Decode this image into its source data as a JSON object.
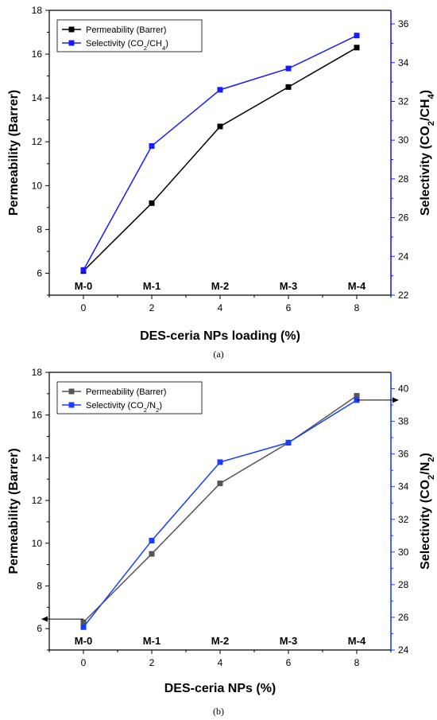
{
  "chart_data": [
    {
      "type": "line",
      "caption": "(a)",
      "x": [
        0,
        2,
        4,
        6,
        8
      ],
      "category_labels": [
        "M-0",
        "M-1",
        "M-2",
        "M-3",
        "M-4"
      ],
      "xlabel": "DES-ceria NPs loading (%)",
      "xlim": [
        -1,
        9
      ],
      "xticks": [
        0,
        2,
        4,
        6,
        8
      ],
      "ylabel": "Permeability (Barrer)",
      "ylim": [
        5,
        18
      ],
      "yticks": [
        6,
        8,
        10,
        12,
        14,
        16,
        18
      ],
      "y2label_parts": [
        "Selectivity (CO",
        "2",
        "/CH",
        "4",
        ")"
      ],
      "y2lim": [
        22,
        36.7
      ],
      "y2ticks": [
        22,
        24,
        26,
        28,
        30,
        32,
        34,
        36
      ],
      "legend_position": "top-left",
      "series": [
        {
          "name": "Permeability (Barrer)",
          "name_parts": [
            "Permeability (Barrer)"
          ],
          "axis": "left",
          "color": "#000000",
          "values": [
            6.1,
            9.2,
            12.7,
            14.5,
            16.3
          ]
        },
        {
          "name": "Selectivity (CO2/CH4)",
          "name_parts": [
            "Selectivity (CO",
            "2",
            "/CH",
            "4",
            ")"
          ],
          "axis": "right",
          "color": "#1a1aff",
          "values": [
            23.3,
            29.7,
            32.6,
            33.7,
            35.4
          ]
        }
      ],
      "arrows": []
    },
    {
      "type": "line",
      "caption": "(b)",
      "x": [
        0,
        2,
        4,
        6,
        8
      ],
      "category_labels": [
        "M-0",
        "M-1",
        "M-2",
        "M-3",
        "M-4"
      ],
      "xlabel": "DES-ceria NPs (%)",
      "xlim": [
        -1,
        9
      ],
      "xticks": [
        0,
        2,
        4,
        6,
        8
      ],
      "ylabel": "Permeability (Barrer)",
      "ylim": [
        5,
        18
      ],
      "yticks": [
        6,
        8,
        10,
        12,
        14,
        16,
        18
      ],
      "y2label_parts": [
        "Selectivity (CO",
        "2",
        "/N",
        "2",
        ")"
      ],
      "y2lim": [
        24,
        41
      ],
      "y2ticks": [
        24,
        26,
        28,
        30,
        32,
        34,
        36,
        38,
        40
      ],
      "legend_position": "top-left",
      "series": [
        {
          "name": "Permeability (Barrer)",
          "name_parts": [
            "Permeability (Barrer)"
          ],
          "axis": "left",
          "color": "#555555",
          "values": [
            6.3,
            9.5,
            12.8,
            14.7,
            16.9
          ]
        },
        {
          "name": "Selectivity (CO2/N2)",
          "name_parts": [
            "Selectivity (CO",
            "2",
            "/N",
            "2",
            ")"
          ],
          "axis": "right",
          "color": "#1a3cff",
          "values": [
            25.4,
            30.7,
            35.5,
            36.7,
            39.3
          ]
        }
      ],
      "arrows": [
        {
          "from_x": 0,
          "axis": "left",
          "y": 6.45,
          "direction": "left"
        },
        {
          "from_x": 8,
          "axis": "right",
          "y": 39.3,
          "direction": "right"
        }
      ]
    }
  ]
}
